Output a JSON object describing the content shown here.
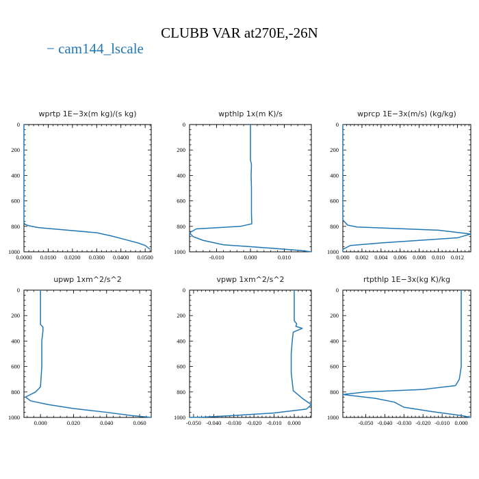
{
  "title": "CLUBB VAR at270E,-26N",
  "legend": {
    "dash": "−",
    "label": "cam144_lscale",
    "color": "#1f77b4"
  },
  "chart_data": [
    {
      "type": "line",
      "title": "wprtp   1E−3x(m kg)/(s kg)",
      "xlim": [
        0,
        0.0525
      ],
      "ylim": [
        0,
        1000
      ],
      "y_reversed": true,
      "xticks": [
        0,
        0.01,
        0.02,
        0.03,
        0.04,
        0.05
      ],
      "xticklabels": [
        "0.0000",
        "0.0100",
        "0.0200",
        "0.0300",
        "0.0400",
        "0.0500"
      ],
      "yticks": [
        0,
        200,
        400,
        600,
        800,
        1000
      ],
      "series": [
        {
          "color": "#1f77b4",
          "x": [
            0,
            0,
            0,
            0.0005,
            0.002,
            0.006,
            0.018,
            0.03,
            0.036,
            0.042,
            0.047,
            0.05,
            0.052
          ],
          "y": [
            0,
            400,
            770,
            785,
            795,
            810,
            830,
            850,
            875,
            905,
            930,
            950,
            980
          ]
        }
      ]
    },
    {
      "type": "line",
      "title": "wpthlp   1x(m K)/s",
      "xlim": [
        -0.018,
        0.018
      ],
      "ylim": [
        0,
        1000
      ],
      "y_reversed": true,
      "xticks": [
        -0.01,
        0,
        0.01
      ],
      "xticklabels": [
        "-0.010",
        "0.000",
        "0.010"
      ],
      "yticks": [
        0,
        200,
        400,
        600,
        800,
        1000
      ],
      "series": [
        {
          "color": "#1f77b4",
          "x": [
            0,
            0,
            0.0002,
            0.0003,
            0.0002,
            0.0003,
            0.0003,
            0.0004,
            -0.003,
            -0.016,
            -0.018,
            -0.017,
            -0.014,
            -0.008,
            0,
            0.008,
            0.015,
            0.018
          ],
          "y": [
            0,
            280,
            300,
            320,
            400,
            500,
            700,
            780,
            800,
            820,
            850,
            880,
            910,
            945,
            960,
            975,
            990,
            1000
          ]
        }
      ]
    },
    {
      "type": "line",
      "title": "wprcp   1E−3x(m/s) (kg/kg)",
      "xlim": [
        0,
        0.0134
      ],
      "ylim": [
        0,
        1000
      ],
      "y_reversed": true,
      "xticks": [
        0,
        0.002,
        0.004,
        0.006,
        0.008,
        0.01,
        0.012
      ],
      "xticklabels": [
        "0.000",
        "0.002",
        "0.004",
        "0.006",
        "0.008",
        "0.010",
        "0.012"
      ],
      "yticks": [
        0,
        200,
        400,
        600,
        800,
        1000
      ],
      "series": [
        {
          "color": "#1f77b4",
          "x": [
            0,
            0,
            0,
            0.0005,
            0.0015,
            0.005,
            0.01,
            0.0134,
            0.012,
            0.008,
            0.004,
            0.0008,
            0,
            0
          ],
          "y": [
            0,
            400,
            750,
            790,
            805,
            815,
            830,
            860,
            890,
            910,
            930,
            950,
            980,
            1000
          ]
        }
      ]
    },
    {
      "type": "line",
      "title": "upwp   1xm^2/s^2",
      "xlim": [
        -0.01,
        0.067
      ],
      "ylim": [
        0,
        1000
      ],
      "y_reversed": true,
      "xticks": [
        0,
        0.02,
        0.04,
        0.06
      ],
      "xticklabels": [
        "0.000",
        "0.020",
        "0.040",
        "0.060"
      ],
      "yticks": [
        0,
        200,
        400,
        600,
        800,
        1000
      ],
      "series": [
        {
          "color": "#1f77b4",
          "x": [
            0,
            0,
            0.0015,
            0.0015,
            0.0008,
            0.0008,
            0,
            -0.003,
            -0.009,
            -0.006,
            0.005,
            0.02,
            0.04,
            0.055,
            0.067
          ],
          "y": [
            0,
            270,
            290,
            320,
            400,
            600,
            760,
            800,
            840,
            870,
            900,
            930,
            960,
            985,
            1000
          ]
        }
      ]
    },
    {
      "type": "line",
      "title": "vpwp   1xm^2/s^2",
      "xlim": [
        -0.052,
        0.0085
      ],
      "ylim": [
        0,
        1000
      ],
      "y_reversed": true,
      "xticks": [
        -0.05,
        -0.04,
        -0.03,
        -0.02,
        -0.01,
        0
      ],
      "xticklabels": [
        "-0.050",
        "-0.040",
        "-0.030",
        "-0.020",
        "-0.010",
        "0.000"
      ],
      "yticks": [
        0,
        200,
        400,
        600,
        800,
        1000
      ],
      "series": [
        {
          "color": "#1f77b4",
          "x": [
            0,
            0,
            0.0012,
            0.0008,
            0.004,
            -0.0005,
            -0.001,
            -0.0015,
            -0.0015,
            -0.0005,
            0.004,
            0.0085,
            0.006,
            -0.01,
            -0.03,
            -0.045,
            -0.052
          ],
          "y": [
            0,
            240,
            265,
            285,
            300,
            330,
            400,
            500,
            650,
            790,
            850,
            900,
            935,
            965,
            985,
            997,
            1000
          ]
        }
      ]
    },
    {
      "type": "line",
      "title": "rtpthlp   1E−3x(kg K)/kg",
      "xlim": [
        -0.062,
        0.005
      ],
      "ylim": [
        0,
        1000
      ],
      "y_reversed": true,
      "xticks": [
        -0.05,
        -0.04,
        -0.03,
        -0.02,
        -0.01,
        0
      ],
      "xticklabels": [
        "-0.050",
        "-0.040",
        "-0.030",
        "-0.020",
        "-0.010",
        "0.000"
      ],
      "yticks": [
        0,
        200,
        400,
        600,
        800,
        1000
      ],
      "series": [
        {
          "color": "#1f77b4",
          "x": [
            0,
            0,
            -0.001,
            -0.003,
            -0.02,
            -0.05,
            -0.062,
            -0.045,
            -0.035,
            -0.03,
            -0.015,
            0,
            0.005
          ],
          "y": [
            0,
            600,
            700,
            750,
            780,
            800,
            820,
            850,
            880,
            920,
            955,
            985,
            1000
          ]
        }
      ]
    }
  ]
}
